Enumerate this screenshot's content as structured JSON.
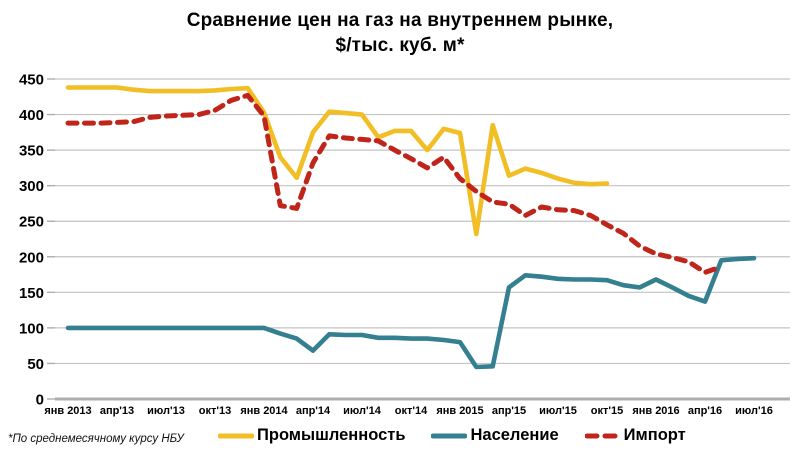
{
  "title": {
    "line1": "Сравнение цен на газ на внутреннем рынке,",
    "line2": "$/тыс. куб. м*"
  },
  "footnote": "*По среднемесячному курсу НБУ",
  "colors": {
    "industry": "#F2BE26",
    "households": "#347F90",
    "import": "#C0251B",
    "gridline": "#C3C3C3",
    "axis": "#ADADAD",
    "text": "#000000"
  },
  "chart_data": {
    "type": "line",
    "title": "Сравнение цен на газ на внутреннем рынке, $/тыс. куб. м*",
    "xlabel": "",
    "ylabel": "",
    "ylim": [
      0,
      450
    ],
    "y_ticks": [
      0,
      50,
      100,
      150,
      200,
      250,
      300,
      350,
      400,
      450
    ],
    "grid": true,
    "legend_position": "bottom",
    "months_span": "Jan 2013 - Jul 2016",
    "x_tick_labels": [
      "янв 2013",
      "апр'13",
      "июл'13",
      "окт'13",
      "янв 2014",
      "апр'14",
      "июл'14",
      "окт'14",
      "янв 2015",
      "апр'15",
      "июл'15",
      "окт'15",
      "янв 2016",
      "апр'16",
      "июл'16"
    ],
    "series": [
      {
        "id": "industry",
        "name": "Промышленность",
        "color": "#F2BE26",
        "style": "solid",
        "start_month_index": 0,
        "values": [
          438,
          438,
          438,
          438,
          435,
          433,
          433,
          433,
          433,
          434,
          436,
          437,
          403,
          340,
          311,
          375,
          404,
          402,
          400,
          368,
          377,
          377,
          350,
          380,
          374,
          232,
          385,
          314,
          324,
          318,
          310,
          304,
          302,
          303
        ]
      },
      {
        "id": "households",
        "name": "Население",
        "color": "#347F90",
        "style": "solid",
        "start_month_index": 0,
        "values": [
          100,
          100,
          100,
          100,
          100,
          100,
          100,
          100,
          100,
          100,
          100,
          100,
          100,
          92,
          85,
          68,
          91,
          90,
          90,
          86,
          86,
          85,
          85,
          83,
          80,
          45,
          46,
          157,
          174,
          172,
          169,
          168,
          168,
          167,
          160,
          157,
          168,
          157,
          145,
          137,
          195,
          197,
          198
        ]
      },
      {
        "id": "import",
        "name": "Импорт",
        "color": "#C0251B",
        "style": "dashed",
        "start_month_index": 0,
        "values": [
          388,
          388,
          388,
          389,
          390,
          396,
          398,
          399,
          400,
          406,
          420,
          427,
          398,
          272,
          268,
          332,
          370,
          367,
          365,
          363,
          350,
          338,
          325,
          340,
          310,
          292,
          277,
          274,
          258,
          270,
          266,
          265,
          258,
          245,
          233,
          215,
          204,
          199,
          193,
          178,
          186
        ]
      }
    ]
  }
}
